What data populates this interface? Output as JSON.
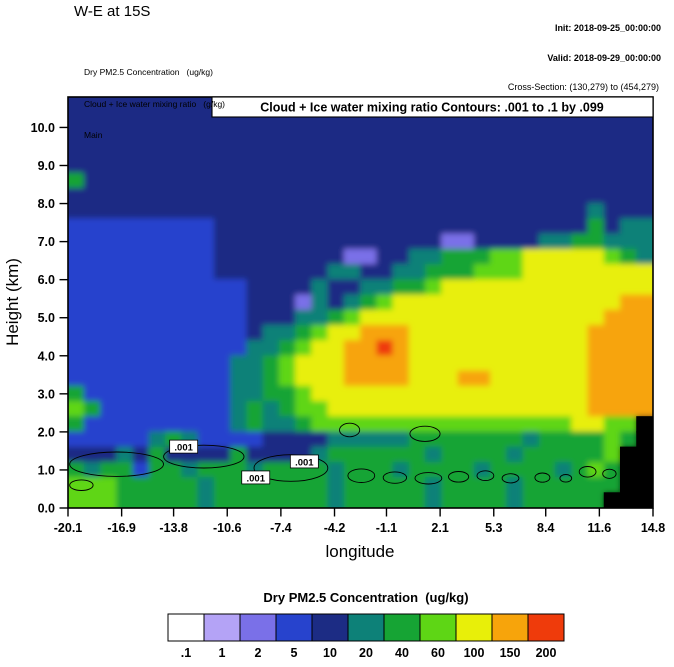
{
  "header": {
    "title": "W-E at 15S",
    "init": "Init: 2018-09-25_00:00:00",
    "valid": "Valid: 2018-09-29_00:00:00",
    "field_pm25": "Dry PM2.5 Concentration   (ug/kg)",
    "field_cloud": "Cloud + Ice water mixing ratio   (g/kg)",
    "grid_name": "Main",
    "cross_section": "Cross-Section: (130,279) to (454,279)"
  },
  "plot": {
    "inner_title": "Cloud + Ice water mixing ratio Contours: .001 to .1 by .099",
    "xlabel": "longitude",
    "ylabel": "Height (km)"
  },
  "colorbar": {
    "title": "Dry PM2.5 Concentration  (ug/kg)",
    "labels": [
      ".1",
      "1",
      "2",
      "5",
      "10",
      "20",
      "40",
      "60",
      "100",
      "150",
      "200"
    ],
    "colors": [
      "#ffffff",
      "#b4a3f6",
      "#7a70e8",
      "#2743cd",
      "#1c2c84",
      "#0d8178",
      "#16a434",
      "#5ed615",
      "#e8ef09",
      "#f7a40b",
      "#ef3b0b"
    ]
  },
  "chart_data": {
    "type": "heatmap",
    "title": "W-E at 15S",
    "xlabel": "longitude",
    "ylabel": "Height (km)",
    "units": "ug/kg",
    "xlim": [
      -20.1,
      14.8
    ],
    "ylim": [
      0,
      10.8
    ],
    "x_tick_labels": [
      "-20.1",
      "-16.9",
      "-13.8",
      "-10.6",
      "-7.4",
      "-4.2",
      "-1.1",
      "2.1",
      "5.3",
      "8.4",
      "11.6",
      "14.8"
    ],
    "y_tick_labels": [
      "0.0",
      "1.0",
      "2.0",
      "3.0",
      "4.0",
      "5.0",
      "6.0",
      "7.0",
      "8.0",
      "9.0",
      "10.0"
    ],
    "value_bins": [
      0.1,
      1,
      2,
      5,
      10,
      20,
      40,
      60,
      100,
      150,
      200
    ],
    "palette": {
      "w": "#ffffff",
      "l": "#b4a3f6",
      "m": "#7a70e8",
      "b": "#2743cd",
      "d": "#1c2c84",
      "t": "#0d8178",
      "g": "#16a434",
      "G": "#5ed615",
      "y": "#e8ef09",
      "o": "#f7a40b",
      "r": "#ef3b0b",
      "k": "#000000"
    },
    "bin_by_symbol": {
      "w": "< .1",
      "l": ".1-1 to 1-2",
      "m": "2-5",
      "b": "5-10",
      "d": "10-20",
      "t": "20-40",
      "g": "40-60",
      "G": "60-100",
      "y": "100-150",
      "o": "150-200",
      "r": "> 200",
      "k": "terrain"
    },
    "grid_cols": 36,
    "grid_rows_top_to_bottom": [
      "dddddddddddddddddddddddddddddddddddd",
      "dddddddddddddddddddddddddddddddddddd",
      "dddddddddddddddddddddddddddddddddddd",
      "dddddddddddddddddddddddddddddddddddd",
      "dddddddddddddddddddddddddddddddddddd",
      "gddddddddddddddddddddddddddddddddddd",
      "dddddddddddddddddddddddddddddddddddd",
      "ddddddddddddddddddddddddddddddddtddd",
      "bbbbbbbbbdddddddddddddddddddddddgdtt",
      "bbbbbbbbbddddddddddddddmmddddttggttt",
      "bbbbbbbbbddddddddmmddttgggGGyyyyyGgt",
      "bbbbbbbbbdddddddttddttgggGGGyyyyyyyy",
      "bbbbbbbbbbbddddtddttggGyyyyyyyyyyyyy",
      "bbbbbbbbbbbdddmtdtgGyyyyyyyyyyyyyyoo",
      "bbbbbbbbbbbdddttgGyyyyyyyyyyyyyyyooo",
      "bbbbbbbbbbbdttgGyyoooyyyyyyyyyyyoooo",
      "bbbbbbbbbbbttgGyyooroyyyyyyyyyyyoooo",
      "bbbbbbbbbbttgGyyyooooyyyyyyyyyyyoooo",
      "bbbbbbbbbbttgGyyyooooyyyooyyyyyyoooo",
      "gbbbbbbbbbttggGyyyyyyyyyyyyyyyyyoooo",
      "GgbbbbbbbbtgtgGGyyyyyyyyyyyyyyyyoooo",
      "gbbbbbbbbbtgttgGGGGGGGGGGGGGGGGyyGGk",
      "bbbbbtgtbbbbddddtttttgggggggtggggGgk",
      "dddtdgddddgddddtggggggtggggtgggggGkk",
      "gtggbggtgggtggggtgggtggggtggggtgGgkk",
      "GGGgggggtgggggggtgggggtggggtggggggkk",
      "GGGgggggtgggggggtgggggtggggtgggggkkk"
    ],
    "cloud_ice_contours": {
      "contour_levels_text": ".001 to .1 by .099",
      "label": ".001",
      "label_positions_lon_km": [
        [
          -13.2,
          1.6
        ],
        [
          -8.9,
          0.79
        ],
        [
          -6.0,
          1.21
        ]
      ],
      "ellipses_lon_km": [
        [
          -17.2,
          1.15,
          2.8,
          0.32
        ],
        [
          -12.0,
          1.35,
          2.4,
          0.3
        ],
        [
          -6.8,
          1.05,
          2.2,
          0.35
        ],
        [
          -19.3,
          0.6,
          0.7,
          0.14
        ],
        [
          -3.3,
          2.05,
          0.6,
          0.18
        ],
        [
          1.2,
          1.95,
          0.9,
          0.2
        ],
        [
          -2.6,
          0.85,
          0.8,
          0.18
        ],
        [
          -0.6,
          0.8,
          0.7,
          0.15
        ],
        [
          1.4,
          0.78,
          0.8,
          0.15
        ],
        [
          3.2,
          0.82,
          0.6,
          0.14
        ],
        [
          4.8,
          0.85,
          0.5,
          0.13
        ],
        [
          6.3,
          0.78,
          0.5,
          0.12
        ],
        [
          8.2,
          0.8,
          0.45,
          0.12
        ],
        [
          9.6,
          0.78,
          0.35,
          0.1
        ],
        [
          10.9,
          0.95,
          0.5,
          0.14
        ],
        [
          12.2,
          0.9,
          0.4,
          0.12
        ]
      ]
    }
  }
}
